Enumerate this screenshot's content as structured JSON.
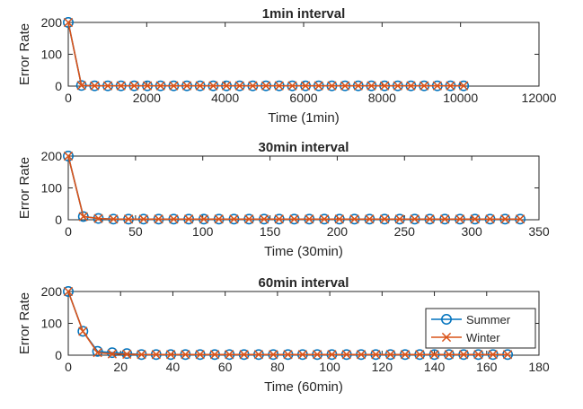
{
  "colors": {
    "summer": "#0072BD",
    "winter": "#D95319",
    "axis": "#262626",
    "background": "#ffffff"
  },
  "chart_data": [
    {
      "type": "line",
      "title": "1min interval",
      "xlabel": "Time (1min)",
      "ylabel": "Error Rate",
      "xlim": [
        0,
        12000
      ],
      "ylim": [
        0,
        200
      ],
      "xticks": [
        "0",
        "2000",
        "4000",
        "6000",
        "8000",
        "10000",
        "12000"
      ],
      "yticks": [
        "0",
        "100",
        "200"
      ],
      "grid": false,
      "legend": false,
      "x": [
        0,
        336,
        672,
        1008,
        1344,
        1680,
        2016,
        2352,
        2688,
        3024,
        3360,
        3696,
        4032,
        4368,
        4704,
        5040,
        5376,
        5712,
        6048,
        6384,
        6720,
        7056,
        7392,
        7728,
        8064,
        8400,
        8736,
        9072,
        9408,
        9744,
        10080
      ],
      "series": [
        {
          "name": "Summer",
          "marker": "circle",
          "values": [
            200,
            2,
            1,
            1,
            1,
            1,
            1,
            1,
            1,
            1,
            1,
            1,
            1,
            1,
            1,
            1,
            1,
            1,
            1,
            1,
            1,
            1,
            1,
            1,
            1,
            1,
            1,
            1,
            1,
            1,
            1
          ]
        },
        {
          "name": "Winter",
          "marker": "x",
          "values": [
            200,
            2,
            1,
            1,
            1,
            1,
            1,
            1,
            1,
            1,
            1,
            1,
            1,
            1,
            1,
            1,
            1,
            1,
            1,
            1,
            1,
            1,
            1,
            1,
            1,
            1,
            1,
            1,
            1,
            1,
            1
          ]
        }
      ]
    },
    {
      "type": "line",
      "title": "30min interval",
      "xlabel": "Time (30min)",
      "ylabel": "Error Rate",
      "xlim": [
        0,
        350
      ],
      "ylim": [
        0,
        200
      ],
      "xticks": [
        "0",
        "50",
        "100",
        "150",
        "200",
        "250",
        "300",
        "350"
      ],
      "yticks": [
        "0",
        "100",
        "200"
      ],
      "grid": false,
      "legend": false,
      "x": [
        0,
        11.2,
        22.4,
        33.6,
        44.8,
        56,
        67.2,
        78.4,
        89.6,
        100.8,
        112,
        123.2,
        134.4,
        145.6,
        156.8,
        168,
        179.2,
        190.4,
        201.6,
        212.8,
        224,
        235.2,
        246.4,
        257.6,
        268.8,
        280,
        291.2,
        302.4,
        313.6,
        324.8,
        336
      ],
      "series": [
        {
          "name": "Summer",
          "marker": "circle",
          "values": [
            200,
            10,
            4,
            2,
            2,
            2,
            2,
            2,
            2,
            2,
            2,
            2,
            2,
            2,
            2,
            2,
            2,
            2,
            2,
            2,
            2,
            2,
            2,
            2,
            2,
            2,
            2,
            2,
            2,
            2,
            2
          ]
        },
        {
          "name": "Winter",
          "marker": "x",
          "values": [
            200,
            10,
            4,
            2,
            2,
            2,
            2,
            2,
            2,
            2,
            2,
            2,
            2,
            2,
            2,
            2,
            2,
            2,
            2,
            2,
            2,
            2,
            2,
            2,
            2,
            2,
            2,
            2,
            2,
            2,
            2
          ]
        }
      ]
    },
    {
      "type": "line",
      "title": "60min interval",
      "xlabel": "Time (60min)",
      "ylabel": "Error Rate",
      "xlim": [
        0,
        180
      ],
      "ylim": [
        0,
        200
      ],
      "xticks": [
        "0",
        "20",
        "40",
        "60",
        "80",
        "100",
        "120",
        "140",
        "160",
        "180"
      ],
      "yticks": [
        "0",
        "100",
        "200"
      ],
      "grid": false,
      "legend": true,
      "legend_position": "right",
      "x": [
        0,
        5.6,
        11.2,
        16.8,
        22.4,
        28,
        33.6,
        39.2,
        44.8,
        50.4,
        56,
        61.6,
        67.2,
        72.8,
        78.4,
        84,
        89.6,
        95.2,
        100.8,
        106.4,
        112,
        117.6,
        123.2,
        128.8,
        134.4,
        140,
        145.6,
        151.2,
        156.8,
        162.4,
        168
      ],
      "series": [
        {
          "name": "Summer",
          "marker": "circle",
          "values": [
            200,
            75,
            12,
            8,
            5,
            2,
            2,
            2,
            2,
            2,
            2,
            2,
            2,
            2,
            2,
            2,
            2,
            2,
            2,
            2,
            2,
            2,
            2,
            2,
            2,
            2,
            2,
            2,
            2,
            2,
            2
          ]
        },
        {
          "name": "Winter",
          "marker": "x",
          "values": [
            200,
            75,
            8,
            4,
            3,
            2,
            2,
            2,
            2,
            2,
            2,
            2,
            2,
            2,
            2,
            2,
            2,
            2,
            2,
            2,
            2,
            2,
            2,
            2,
            2,
            2,
            2,
            2,
            2,
            2,
            2
          ]
        }
      ]
    }
  ]
}
